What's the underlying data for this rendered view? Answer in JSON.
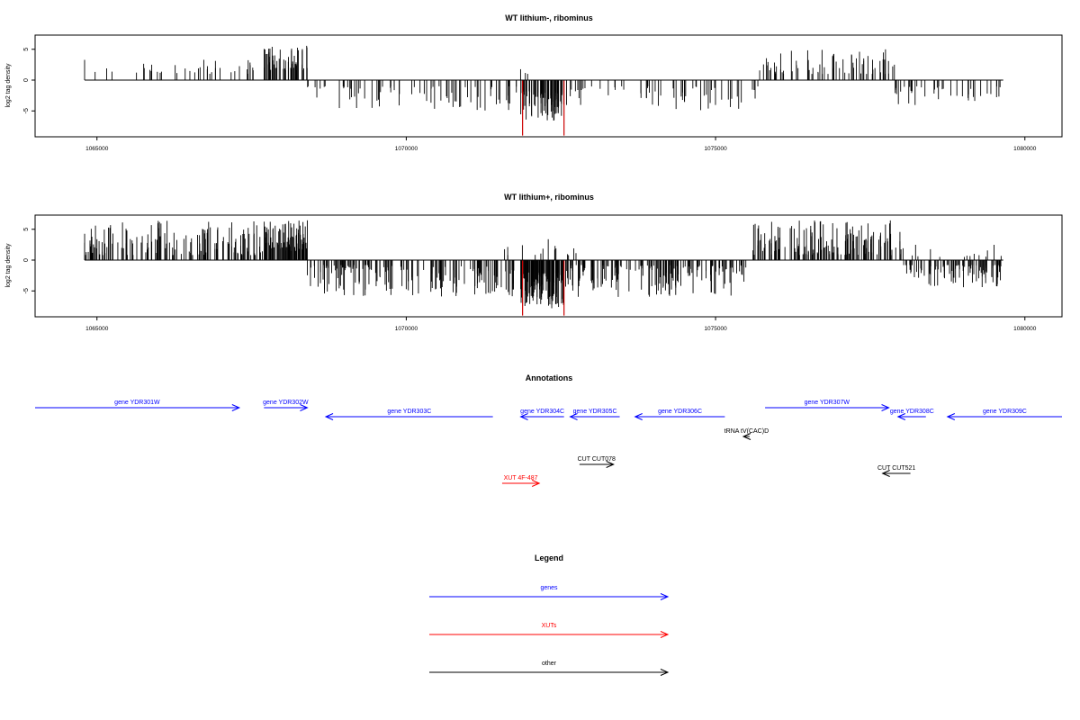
{
  "colors": {
    "genes": "#0000ff",
    "xuts": "#ff0000",
    "other": "#000000",
    "highlight": "#cc0000",
    "bars": "#000000"
  },
  "chart_data": [
    {
      "type": "bar",
      "title": "WT lithium-, ribominus",
      "xlabel": "",
      "ylabel": "log2 tag density",
      "xlim": [
        1064000,
        1080600
      ],
      "ylim": [
        -9.2,
        7.3
      ],
      "xticks": [
        1065000,
        1070000,
        1075000,
        1080000
      ],
      "xtick_labels": [
        "1065000",
        "1070000",
        "1075000",
        "1080000"
      ],
      "yticks": [
        5,
        0,
        -5
      ],
      "ytick_labels": [
        "5",
        "0",
        "-5"
      ],
      "highlight_color": "#cc0000",
      "segments": [
        {
          "x_start": 1064800,
          "x_end": 1067700,
          "sign": 1,
          "n": 40,
          "min": 1.0,
          "max": 3.6
        },
        {
          "x_start": 1067700,
          "x_end": 1068400,
          "sign": 1,
          "n": 60,
          "min": 1.6,
          "max": 5.6
        },
        {
          "x_start": 1068400,
          "x_end": 1071800,
          "sign": -1,
          "n": 75,
          "min": 1.0,
          "max": 5.0
        },
        {
          "x_start": 1071600,
          "x_end": 1072000,
          "sign": 1,
          "n": 3,
          "min": 1.0,
          "max": 2.6
        },
        {
          "x_start": 1071850,
          "x_end": 1072550,
          "sign": -1,
          "n": 80,
          "min": 1.8,
          "max": 6.8
        },
        {
          "x_start": 1072500,
          "x_end": 1075700,
          "sign": -1,
          "n": 60,
          "min": 1.0,
          "max": 5.0
        },
        {
          "x_start": 1075700,
          "x_end": 1077900,
          "sign": 1,
          "n": 70,
          "min": 1.0,
          "max": 5.0
        },
        {
          "x_start": 1077900,
          "x_end": 1079650,
          "sign": -1,
          "n": 40,
          "min": 1.0,
          "max": 4.2
        }
      ],
      "highlight_bars": [
        {
          "x": 1071880,
          "y": -9.0
        },
        {
          "x": 1072550,
          "y": -9.0
        }
      ]
    },
    {
      "type": "bar",
      "title": "WT lithium+, ribominus",
      "xlabel": "",
      "ylabel": "log2 tag density",
      "xlim": [
        1064000,
        1080600
      ],
      "ylim": [
        -9.2,
        7.3
      ],
      "xticks": [
        1065000,
        1070000,
        1075000,
        1080000
      ],
      "xtick_labels": [
        "1065000",
        "1070000",
        "1075000",
        "1080000"
      ],
      "yticks": [
        5,
        0,
        -5
      ],
      "ytick_labels": [
        "5",
        "0",
        "-5"
      ],
      "highlight_color": "#cc0000",
      "segments": [
        {
          "x_start": 1064800,
          "x_end": 1067700,
          "sign": 1,
          "n": 150,
          "min": 0.8,
          "max": 6.5
        },
        {
          "x_start": 1067700,
          "x_end": 1068400,
          "sign": 1,
          "n": 90,
          "min": 1.5,
          "max": 6.5
        },
        {
          "x_start": 1068400,
          "x_end": 1071800,
          "sign": -1,
          "n": 170,
          "min": 0.8,
          "max": 6.0
        },
        {
          "x_start": 1071500,
          "x_end": 1072800,
          "sign": 1,
          "n": 15,
          "min": 0.8,
          "max": 4.0
        },
        {
          "x_start": 1071850,
          "x_end": 1072550,
          "sign": -1,
          "n": 120,
          "min": 2.0,
          "max": 8.0
        },
        {
          "x_start": 1072550,
          "x_end": 1075500,
          "sign": -1,
          "n": 170,
          "min": 0.8,
          "max": 6.0
        },
        {
          "x_start": 1075600,
          "x_end": 1078000,
          "sign": 1,
          "n": 150,
          "min": 0.8,
          "max": 6.5
        },
        {
          "x_start": 1078000,
          "x_end": 1079650,
          "sign": -1,
          "n": 100,
          "min": 0.8,
          "max": 4.5
        },
        {
          "x_start": 1078000,
          "x_end": 1079650,
          "sign": 1,
          "n": 15,
          "min": 0.5,
          "max": 2.5
        }
      ],
      "highlight_bars": [
        {
          "x": 1071880,
          "y": -9.0
        },
        {
          "x": 1072550,
          "y": -9.0
        }
      ]
    }
  ],
  "annotations": {
    "title": "Annotations",
    "items": [
      {
        "label": "gene YDR301W",
        "type": "genes",
        "direction": "right",
        "start": 1064000,
        "end": 1067300,
        "row": 0
      },
      {
        "label": "gene YDR302W",
        "type": "genes",
        "direction": "right",
        "start": 1067700,
        "end": 1068400,
        "row": 0
      },
      {
        "label": "gene YDR303C",
        "type": "genes",
        "direction": "left",
        "start": 1068700,
        "end": 1071400,
        "row": 1
      },
      {
        "label": "gene YDR304C",
        "type": "genes",
        "direction": "left",
        "start": 1071850,
        "end": 1072550,
        "row": 1
      },
      {
        "label": "gene YDR305C",
        "type": "genes",
        "direction": "left",
        "start": 1072650,
        "end": 1073450,
        "row": 1
      },
      {
        "label": "gene YDR306C",
        "type": "genes",
        "direction": "left",
        "start": 1073700,
        "end": 1075150,
        "row": 1
      },
      {
        "label": "gene YDR307W",
        "type": "genes",
        "direction": "right",
        "start": 1075800,
        "end": 1077800,
        "row": 0
      },
      {
        "label": "gene YDR308C",
        "type": "genes",
        "direction": "left",
        "start": 1077950,
        "end": 1078400,
        "row": 1
      },
      {
        "label": "gene YDR309C",
        "type": "genes",
        "direction": "left",
        "start": 1078750,
        "end": 1080600,
        "row": 1
      },
      {
        "label": "tRNA tV(CAC)D",
        "type": "other",
        "direction": "left",
        "start": 1075450,
        "end": 1075550,
        "row": 2
      },
      {
        "label": "CUT CUT078",
        "type": "other",
        "direction": "right",
        "start": 1072800,
        "end": 1073350,
        "row": 3
      },
      {
        "label": "CUT CUT521",
        "type": "other",
        "direction": "left",
        "start": 1077700,
        "end": 1078150,
        "row": 4
      },
      {
        "label": "XUT 4F-487",
        "type": "xuts",
        "direction": "right",
        "start": 1071550,
        "end": 1072150,
        "row": 5
      }
    ]
  },
  "legend": {
    "title": "Legend",
    "items": [
      {
        "label": "genes",
        "type": "genes"
      },
      {
        "label": "XUTs",
        "type": "xuts"
      },
      {
        "label": "other",
        "type": "other"
      }
    ]
  }
}
